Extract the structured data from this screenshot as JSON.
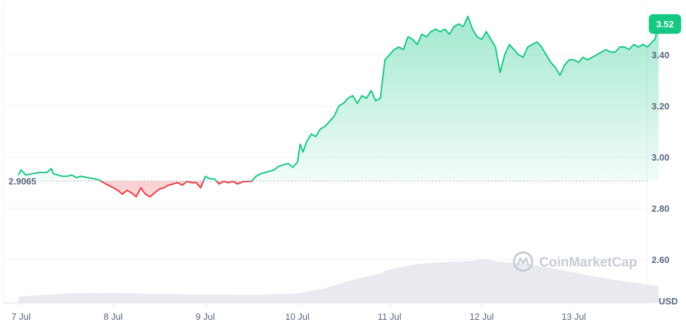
{
  "chart_data": {
    "type": "line",
    "x_labels": [
      "7 Jul",
      "8 Jul",
      "9 Jul",
      "10 Jul",
      "11 Jul",
      "12 Jul",
      "13 Jul"
    ],
    "y_ticks": [
      2.6,
      2.8,
      3.0,
      3.2,
      3.4
    ],
    "ylim": [
      2.46,
      3.6
    ],
    "unit_label": "USD",
    "reference_value": 2.9065,
    "reference_label": "2.9065",
    "last_price": 3.52,
    "last_price_label": "3.52",
    "watermark": "CoinMarketCap",
    "x_day_range": [
      6.97,
      14.3
    ],
    "series": [
      {
        "points": [
          [
            6.97,
            2.93
          ],
          [
            7.0,
            2.95
          ],
          [
            7.05,
            2.93
          ],
          [
            7.12,
            2.935
          ],
          [
            7.2,
            2.94
          ],
          [
            7.28,
            2.94
          ],
          [
            7.33,
            2.955
          ],
          [
            7.35,
            2.935
          ],
          [
            7.4,
            2.93
          ],
          [
            7.45,
            2.925
          ],
          [
            7.5,
            2.925
          ],
          [
            7.55,
            2.93
          ],
          [
            7.6,
            2.92
          ],
          [
            7.65,
            2.925
          ],
          [
            7.72,
            2.92
          ],
          [
            7.8,
            2.915
          ],
          [
            7.85,
            2.91
          ],
          [
            7.92,
            2.895
          ],
          [
            8.0,
            2.88
          ],
          [
            8.05,
            2.87
          ],
          [
            8.1,
            2.855
          ],
          [
            8.15,
            2.87
          ],
          [
            8.2,
            2.86
          ],
          [
            8.25,
            2.845
          ],
          [
            8.3,
            2.88
          ],
          [
            8.35,
            2.855
          ],
          [
            8.4,
            2.845
          ],
          [
            8.45,
            2.86
          ],
          [
            8.5,
            2.875
          ],
          [
            8.55,
            2.88
          ],
          [
            8.6,
            2.89
          ],
          [
            8.65,
            2.895
          ],
          [
            8.7,
            2.9
          ],
          [
            8.75,
            2.89
          ],
          [
            8.8,
            2.905
          ],
          [
            8.85,
            2.9
          ],
          [
            8.9,
            2.9
          ],
          [
            8.95,
            2.88
          ],
          [
            9.0,
            2.925
          ],
          [
            9.05,
            2.915
          ],
          [
            9.1,
            2.915
          ],
          [
            9.15,
            2.895
          ],
          [
            9.2,
            2.905
          ],
          [
            9.25,
            2.9
          ],
          [
            9.3,
            2.905
          ],
          [
            9.35,
            2.895
          ],
          [
            9.42,
            2.905
          ],
          [
            9.5,
            2.905
          ],
          [
            9.55,
            2.925
          ],
          [
            9.6,
            2.935
          ],
          [
            9.65,
            2.94
          ],
          [
            9.7,
            2.945
          ],
          [
            9.75,
            2.95
          ],
          [
            9.8,
            2.965
          ],
          [
            9.85,
            2.97
          ],
          [
            9.9,
            2.975
          ],
          [
            9.95,
            2.96
          ],
          [
            10.0,
            2.98
          ],
          [
            10.03,
            3.05
          ],
          [
            10.06,
            3.02
          ],
          [
            10.1,
            3.06
          ],
          [
            10.15,
            3.09
          ],
          [
            10.2,
            3.08
          ],
          [
            10.25,
            3.11
          ],
          [
            10.3,
            3.12
          ],
          [
            10.35,
            3.14
          ],
          [
            10.4,
            3.16
          ],
          [
            10.45,
            3.2
          ],
          [
            10.5,
            3.21
          ],
          [
            10.55,
            3.23
          ],
          [
            10.6,
            3.24
          ],
          [
            10.65,
            3.21
          ],
          [
            10.7,
            3.24
          ],
          [
            10.75,
            3.23
          ],
          [
            10.8,
            3.26
          ],
          [
            10.85,
            3.22
          ],
          [
            10.9,
            3.23
          ],
          [
            10.95,
            3.38
          ],
          [
            11.0,
            3.4
          ],
          [
            11.05,
            3.42
          ],
          [
            11.1,
            3.43
          ],
          [
            11.15,
            3.42
          ],
          [
            11.2,
            3.47
          ],
          [
            11.25,
            3.46
          ],
          [
            11.3,
            3.44
          ],
          [
            11.35,
            3.48
          ],
          [
            11.4,
            3.47
          ],
          [
            11.45,
            3.49
          ],
          [
            11.5,
            3.5
          ],
          [
            11.55,
            3.49
          ],
          [
            11.6,
            3.5
          ],
          [
            11.65,
            3.48
          ],
          [
            11.7,
            3.51
          ],
          [
            11.75,
            3.52
          ],
          [
            11.8,
            3.51
          ],
          [
            11.85,
            3.55
          ],
          [
            11.9,
            3.5
          ],
          [
            11.95,
            3.47
          ],
          [
            12.0,
            3.46
          ],
          [
            12.05,
            3.49
          ],
          [
            12.1,
            3.46
          ],
          [
            12.15,
            3.43
          ],
          [
            12.2,
            3.33
          ],
          [
            12.25,
            3.4
          ],
          [
            12.3,
            3.44
          ],
          [
            12.35,
            3.42
          ],
          [
            12.4,
            3.4
          ],
          [
            12.45,
            3.39
          ],
          [
            12.5,
            3.43
          ],
          [
            12.55,
            3.44
          ],
          [
            12.6,
            3.45
          ],
          [
            12.65,
            3.43
          ],
          [
            12.7,
            3.4
          ],
          [
            12.75,
            3.37
          ],
          [
            12.8,
            3.35
          ],
          [
            12.85,
            3.32
          ],
          [
            12.9,
            3.36
          ],
          [
            12.95,
            3.38
          ],
          [
            13.0,
            3.38
          ],
          [
            13.05,
            3.37
          ],
          [
            13.1,
            3.39
          ],
          [
            13.15,
            3.38
          ],
          [
            13.2,
            3.39
          ],
          [
            13.25,
            3.4
          ],
          [
            13.3,
            3.41
          ],
          [
            13.35,
            3.42
          ],
          [
            13.4,
            3.41
          ],
          [
            13.45,
            3.41
          ],
          [
            13.5,
            3.43
          ],
          [
            13.55,
            3.43
          ],
          [
            13.6,
            3.42
          ],
          [
            13.65,
            3.44
          ],
          [
            13.7,
            3.43
          ],
          [
            13.75,
            3.44
          ],
          [
            13.8,
            3.43
          ],
          [
            13.85,
            3.45
          ],
          [
            13.88,
            3.46
          ],
          [
            13.92,
            3.52
          ]
        ]
      }
    ],
    "volume_series": [
      [
        6.97,
        0.03
      ],
      [
        7.5,
        0.045
      ],
      [
        8.0,
        0.048
      ],
      [
        8.5,
        0.042
      ],
      [
        9.0,
        0.04
      ],
      [
        9.5,
        0.038
      ],
      [
        10.0,
        0.045
      ],
      [
        10.3,
        0.07
      ],
      [
        10.6,
        0.11
      ],
      [
        10.9,
        0.14
      ],
      [
        11.0,
        0.16
      ],
      [
        11.3,
        0.185
      ],
      [
        11.6,
        0.195
      ],
      [
        11.9,
        0.2
      ],
      [
        12.0,
        0.21
      ],
      [
        12.2,
        0.195
      ],
      [
        12.5,
        0.185
      ],
      [
        12.7,
        0.17
      ],
      [
        13.0,
        0.145
      ],
      [
        13.3,
        0.12
      ],
      [
        13.6,
        0.1
      ],
      [
        13.92,
        0.08
      ]
    ],
    "colors": {
      "up": "#16c784",
      "down": "#ea3943",
      "volume": "#e8eaef",
      "grid": "#eff2f5",
      "reference": "#a6b0c3"
    }
  }
}
